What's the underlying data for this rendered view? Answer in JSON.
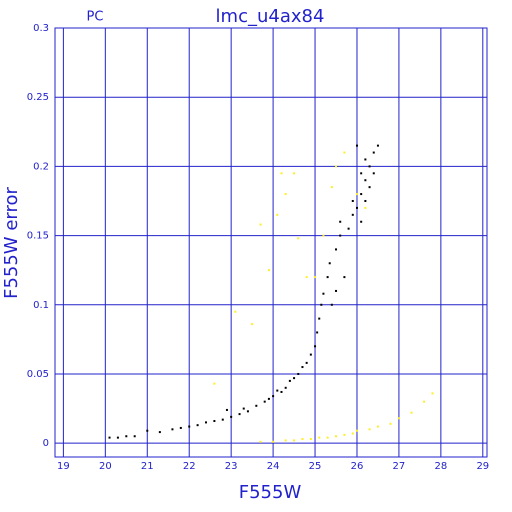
{
  "chart_data": {
    "type": "scatter",
    "title": "lmc_u4ax84",
    "subtitle": "PC",
    "x_label": "F555W",
    "y_label": "F555W error",
    "xlim": [
      18.8,
      29.1
    ],
    "ylim": [
      -0.01,
      0.3
    ],
    "xticks": [
      19,
      20,
      21,
      22,
      23,
      24,
      25,
      26,
      27,
      28,
      29
    ],
    "yticks": [
      0,
      0.05,
      0.1,
      0.15,
      0.2,
      0.25,
      0.3
    ],
    "grid": true,
    "grid_color": "#2222cc",
    "series": [
      {
        "color": "#000000",
        "x": [
          20.1,
          20.3,
          20.5,
          20.7,
          21.0,
          21.3,
          21.6,
          21.8,
          22.0,
          22.2,
          22.4,
          22.6,
          22.8,
          23.0,
          23.2,
          23.4,
          23.6,
          23.8,
          23.9,
          24.0,
          24.2,
          24.3,
          24.4,
          24.5,
          24.6,
          24.7,
          24.8,
          24.9,
          25.0,
          25.05,
          25.1,
          25.15,
          25.2,
          25.3,
          25.35,
          25.5,
          25.6,
          25.8,
          25.9,
          26.0,
          26.1,
          26.2,
          26.3,
          26.4,
          26.5,
          26.0,
          26.2,
          26.3,
          26.4,
          26.1,
          25.4,
          25.7,
          26.2,
          25.6,
          26.1,
          25.9,
          25.5,
          23.3,
          22.9,
          24.1
        ],
        "values": [
          0.004,
          0.004,
          0.005,
          0.005,
          0.009,
          0.008,
          0.01,
          0.011,
          0.012,
          0.013,
          0.015,
          0.016,
          0.017,
          0.019,
          0.021,
          0.023,
          0.027,
          0.03,
          0.032,
          0.034,
          0.037,
          0.04,
          0.045,
          0.047,
          0.05,
          0.055,
          0.058,
          0.064,
          0.07,
          0.08,
          0.09,
          0.1,
          0.108,
          0.12,
          0.13,
          0.14,
          0.15,
          0.155,
          0.165,
          0.17,
          0.18,
          0.19,
          0.2,
          0.21,
          0.215,
          0.215,
          0.205,
          0.185,
          0.195,
          0.16,
          0.1,
          0.12,
          0.175,
          0.16,
          0.195,
          0.175,
          0.11,
          0.025,
          0.024,
          0.038
        ]
      },
      {
        "color": "#ffee22",
        "x": [
          23.7,
          24.0,
          24.3,
          24.5,
          24.7,
          24.9,
          25.1,
          25.3,
          25.5,
          25.7,
          25.9,
          26.0,
          26.3,
          26.5,
          26.8,
          27.0,
          27.3,
          27.6,
          27.8,
          22.6,
          23.1,
          23.5,
          23.7,
          23.9,
          24.2,
          24.3,
          24.5,
          24.6,
          24.8,
          25.0,
          25.2,
          25.4,
          25.5,
          25.7,
          26.0,
          26.2,
          24.1
        ],
        "values": [
          0.001,
          0.001,
          0.002,
          0.002,
          0.003,
          0.003,
          0.004,
          0.004,
          0.005,
          0.006,
          0.007,
          0.009,
          0.01,
          0.012,
          0.014,
          0.018,
          0.022,
          0.03,
          0.036,
          0.043,
          0.095,
          0.086,
          0.158,
          0.125,
          0.195,
          0.18,
          0.195,
          0.148,
          0.12,
          0.12,
          0.15,
          0.185,
          0.2,
          0.21,
          0.18,
          0.17,
          0.165
        ]
      }
    ]
  }
}
